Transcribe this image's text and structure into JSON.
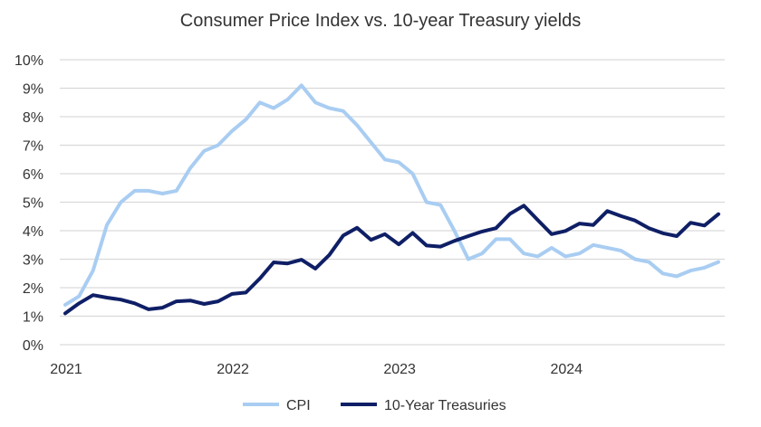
{
  "chart_data": {
    "type": "line",
    "title": "Consumer Price Index vs. 10-year Treasury yields",
    "xlabel": "",
    "ylabel": "",
    "x_tick_labels": [
      "2021",
      "2022",
      "2023",
      "2024"
    ],
    "y_tick_labels": [
      "0%",
      "1%",
      "2%",
      "3%",
      "4%",
      "5%",
      "6%",
      "7%",
      "8%",
      "9%",
      "10%"
    ],
    "ylim": [
      0,
      10
    ],
    "x_start": "2021-01",
    "x_frequency": "monthly",
    "grid": "horizontal",
    "legend_position": "bottom",
    "series": [
      {
        "name": "CPI",
        "color": "#a9cdf2",
        "values": [
          1.4,
          1.7,
          2.6,
          4.2,
          5.0,
          5.4,
          5.4,
          5.3,
          5.4,
          6.2,
          6.8,
          7.0,
          7.5,
          7.9,
          8.5,
          8.3,
          8.6,
          9.1,
          8.5,
          8.3,
          8.2,
          7.7,
          7.1,
          6.5,
          6.4,
          6.0,
          5.0,
          4.9,
          4.0,
          3.0,
          3.2,
          3.7,
          3.7,
          3.2,
          3.1,
          3.4,
          3.1,
          3.2,
          3.5,
          3.4,
          3.3,
          3.0,
          2.9,
          2.5,
          2.4,
          2.6,
          2.7,
          2.9
        ]
      },
      {
        "name": "10-Year Treasuries",
        "color": "#0f1f66",
        "values": [
          1.1,
          1.45,
          1.74,
          1.65,
          1.58,
          1.45,
          1.24,
          1.3,
          1.52,
          1.55,
          1.43,
          1.52,
          1.78,
          1.83,
          2.32,
          2.89,
          2.85,
          2.98,
          2.67,
          3.15,
          3.83,
          4.1,
          3.68,
          3.88,
          3.52,
          3.92,
          3.48,
          3.44,
          3.64,
          3.81,
          3.97,
          4.09,
          4.59,
          4.88,
          4.37,
          3.88,
          3.99,
          4.25,
          4.2,
          4.69,
          4.51,
          4.36,
          4.09,
          3.91,
          3.81,
          4.28,
          4.18,
          4.58
        ]
      }
    ]
  }
}
